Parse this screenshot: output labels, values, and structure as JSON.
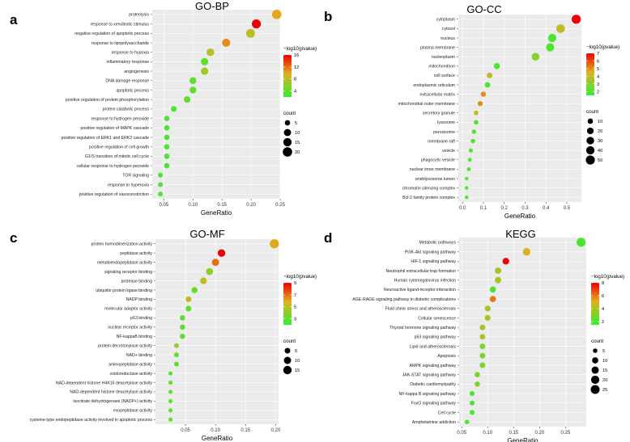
{
  "colors": {
    "low": "#33ee33",
    "mid": "#e0b020",
    "high": "#ee0000",
    "panel_bg": "#ebebeb"
  },
  "legend_titles": {
    "color": "−log10(pvalue)",
    "size": "count"
  },
  "chart_data": [
    {
      "type": "scatter",
      "letter": "a",
      "title": "GO-BP",
      "xlabel": "GeneRatio",
      "xlim": [
        0.03,
        0.25
      ],
      "xticks": [
        0.05,
        0.1,
        0.15,
        0.2,
        0.25
      ],
      "xtick_labels": [
        "0.05",
        "0.10",
        "0.15",
        "0.20",
        "0.25"
      ],
      "color_range": [
        2,
        16
      ],
      "color_ticks": [
        4,
        8,
        12,
        16
      ],
      "size_range": [
        2,
        20
      ],
      "size_ticks": [
        5,
        10,
        15,
        20
      ],
      "terms": [
        {
          "label": "proteolysis",
          "x": 0.244,
          "p": 10,
          "count": 20
        },
        {
          "label": "response to xenobiotic stimulus",
          "x": 0.209,
          "p": 16,
          "count": 18
        },
        {
          "label": "negative regulation of apoptotic process",
          "x": 0.199,
          "p": 8,
          "count": 17
        },
        {
          "label": "response to lipopolysaccharide",
          "x": 0.157,
          "p": 11,
          "count": 14
        },
        {
          "label": "response to hypoxia",
          "x": 0.13,
          "p": 8,
          "count": 12
        },
        {
          "label": "inflammatory response",
          "x": 0.12,
          "p": 4,
          "count": 11
        },
        {
          "label": "angiogenesis",
          "x": 0.12,
          "p": 7,
          "count": 11
        },
        {
          "label": "DNA damage response",
          "x": 0.1,
          "p": 4,
          "count": 9
        },
        {
          "label": "apoptotic process",
          "x": 0.1,
          "p": 4,
          "count": 9
        },
        {
          "label": "positive regulation of protein phosphorylation",
          "x": 0.09,
          "p": 4,
          "count": 8
        },
        {
          "label": "protein catabolic process",
          "x": 0.067,
          "p": 3,
          "count": 6
        },
        {
          "label": "response to hydrogen peroxide",
          "x": 0.055,
          "p": 3,
          "count": 5
        },
        {
          "label": "positive regulation of MAPK cascade",
          "x": 0.055,
          "p": 3,
          "count": 5
        },
        {
          "label": "positive regulation of ERK1 and ERK2 cascade",
          "x": 0.055,
          "p": 3,
          "count": 5
        },
        {
          "label": "positive regulation of cell growth",
          "x": 0.055,
          "p": 3,
          "count": 5
        },
        {
          "label": "G1/S transition of mitotic cell cycle",
          "x": 0.055,
          "p": 3,
          "count": 5
        },
        {
          "label": "cellular response to hydrogen peroxide",
          "x": 0.055,
          "p": 3,
          "count": 5
        },
        {
          "label": "TOR signaling",
          "x": 0.044,
          "p": 3,
          "count": 4
        },
        {
          "label": "response to hyperoxia",
          "x": 0.044,
          "p": 3,
          "count": 4
        },
        {
          "label": "positive regulation of vasoconstriction",
          "x": 0.044,
          "p": 3,
          "count": 4
        }
      ]
    },
    {
      "type": "scatter",
      "letter": "b",
      "title": "GO-CC",
      "xlabel": "GeneRatio",
      "xlim": [
        -0.02,
        0.57
      ],
      "xticks": [
        0.0,
        0.1,
        0.2,
        0.3,
        0.4,
        0.5
      ],
      "xtick_labels": [
        "0.0",
        "0.1",
        "0.2",
        "0.3",
        "0.4",
        "0.5"
      ],
      "color_range": [
        1.5,
        7
      ],
      "color_ticks": [
        2,
        3,
        4,
        5,
        6,
        7
      ],
      "size_range": [
        1,
        55
      ],
      "size_ticks": [
        10,
        20,
        30,
        40,
        50
      ],
      "terms": [
        {
          "label": "cytoplasm",
          "x": 0.545,
          "p": 7,
          "count": 50
        },
        {
          "label": "cytosol",
          "x": 0.47,
          "p": 4,
          "count": 43
        },
        {
          "label": "nucleus",
          "x": 0.43,
          "p": 2,
          "count": 39
        },
        {
          "label": "plasma membrane",
          "x": 0.42,
          "p": 2,
          "count": 38
        },
        {
          "label": "nucleoplasm",
          "x": 0.35,
          "p": 3,
          "count": 32
        },
        {
          "label": "mitochondrion",
          "x": 0.165,
          "p": 2,
          "count": 15
        },
        {
          "label": "cell surface",
          "x": 0.13,
          "p": 4,
          "count": 12
        },
        {
          "label": "endoplasmic reticulum",
          "x": 0.12,
          "p": 2,
          "count": 11
        },
        {
          "label": "extracellular matrix",
          "x": 0.1,
          "p": 5,
          "count": 9
        },
        {
          "label": "mitochondrial outer membrane",
          "x": 0.085,
          "p": 5,
          "count": 8
        },
        {
          "label": "secretory granule",
          "x": 0.065,
          "p": 4,
          "count": 6
        },
        {
          "label": "lysosome",
          "x": 0.065,
          "p": 2,
          "count": 6
        },
        {
          "label": "peroxisome",
          "x": 0.055,
          "p": 2,
          "count": 5
        },
        {
          "label": "membrane raft",
          "x": 0.05,
          "p": 2,
          "count": 5
        },
        {
          "label": "vesicle",
          "x": 0.04,
          "p": 2,
          "count": 4
        },
        {
          "label": "phagocytic vesicle",
          "x": 0.035,
          "p": 2,
          "count": 3
        },
        {
          "label": "nuclear inner membrane",
          "x": 0.03,
          "p": 2,
          "count": 3
        },
        {
          "label": "endolysosome lumen",
          "x": 0.02,
          "p": 2,
          "count": 2
        },
        {
          "label": "chromatin silencing complex",
          "x": 0.02,
          "p": 2,
          "count": 2
        },
        {
          "label": "Bcl-2 family protein complex",
          "x": 0.02,
          "p": 2,
          "count": 2
        }
      ]
    },
    {
      "type": "scatter",
      "letter": "c",
      "title": "GO-MF",
      "xlabel": "GeneRatio",
      "xlim": [
        0.0,
        0.205
      ],
      "xticks": [
        0.05,
        0.1,
        0.15,
        0.2
      ],
      "xtick_labels": [
        "0.05",
        "0.10",
        "0.15",
        "0.20"
      ],
      "color_range": [
        2,
        9
      ],
      "color_ticks": [
        3,
        5,
        7,
        9
      ],
      "size_range": [
        1,
        20
      ],
      "size_ticks": [
        5,
        10,
        15
      ],
      "terms": [
        {
          "label": "protein homodimerization activity",
          "x": 0.198,
          "p": 6,
          "count": 18
        },
        {
          "label": "peptidase activity",
          "x": 0.11,
          "p": 9,
          "count": 11
        },
        {
          "label": "metalloendopeptidase activity",
          "x": 0.1,
          "p": 7,
          "count": 10
        },
        {
          "label": "signaling receptor binding",
          "x": 0.09,
          "p": 4,
          "count": 9
        },
        {
          "label": "protease binding",
          "x": 0.08,
          "p": 5,
          "count": 8
        },
        {
          "label": "ubiquitin protein ligase binding",
          "x": 0.065,
          "p": 3,
          "count": 6
        },
        {
          "label": "NADP binding",
          "x": 0.055,
          "p": 5,
          "count": 5
        },
        {
          "label": "molecular adaptor activity",
          "x": 0.055,
          "p": 3,
          "count": 5
        },
        {
          "label": "p53 binding",
          "x": 0.045,
          "p": 3,
          "count": 4
        },
        {
          "label": "nuclear receptor activity",
          "x": 0.045,
          "p": 3,
          "count": 4
        },
        {
          "label": "NF-kappaB binding",
          "x": 0.045,
          "p": 3,
          "count": 4
        },
        {
          "label": "protein decrotonylase activity",
          "x": 0.035,
          "p": 4,
          "count": 3
        },
        {
          "label": "NAD+ binding",
          "x": 0.035,
          "p": 3,
          "count": 3
        },
        {
          "label": "aminopeptidase activity",
          "x": 0.035,
          "p": 3,
          "count": 3
        },
        {
          "label": "oxidoreductase activity",
          "x": 0.025,
          "p": 3,
          "count": 2
        },
        {
          "label": "NAD-dependent histone H4K16 deacetylase activity",
          "x": 0.025,
          "p": 3,
          "count": 2
        },
        {
          "label": "NAD-dependent histone deacetylase activity",
          "x": 0.025,
          "p": 3,
          "count": 2
        },
        {
          "label": "isocitrate dehydrogenase (NADP+) activity",
          "x": 0.025,
          "p": 3,
          "count": 2
        },
        {
          "label": "exopeptidase activity",
          "x": 0.025,
          "p": 3,
          "count": 2
        },
        {
          "label": "cysteine-type endopeptidase activity involved in apoptotic process",
          "x": 0.025,
          "p": 3,
          "count": 2
        }
      ]
    },
    {
      "type": "scatter",
      "letter": "d",
      "title": "KEGG",
      "xlabel": "GeneRatio",
      "xlim": [
        0.045,
        0.29
      ],
      "xticks": [
        0.05,
        0.1,
        0.15,
        0.2,
        0.25
      ],
      "xtick_labels": [
        "0.05",
        "0.10",
        "0.15",
        "0.20",
        "0.25"
      ],
      "color_range": [
        1.5,
        8
      ],
      "color_ticks": [
        2,
        4,
        6,
        8
      ],
      "size_range": [
        3,
        28
      ],
      "size_ticks": [
        5,
        10,
        15,
        20,
        25
      ],
      "terms": [
        {
          "label": "Metabolic pathways",
          "x": 0.28,
          "p": 2,
          "count": 25
        },
        {
          "label": "PI3K-Akt signaling pathway",
          "x": 0.175,
          "p": 5,
          "count": 16
        },
        {
          "label": "HIF-1 signaling pathway",
          "x": 0.135,
          "p": 8,
          "count": 12
        },
        {
          "label": "Neutrophil extracellular trap formation",
          "x": 0.12,
          "p": 4,
          "count": 11
        },
        {
          "label": "Human cytomegalovirus infection",
          "x": 0.12,
          "p": 4,
          "count": 11
        },
        {
          "label": "Neuroactive ligand-receptor interaction",
          "x": 0.11,
          "p": 2,
          "count": 10
        },
        {
          "label": "AGE-RAGE signaling pathway in diabetic complications",
          "x": 0.11,
          "p": 6,
          "count": 10
        },
        {
          "label": "Fluid shear stress and atherosclerosis",
          "x": 0.1,
          "p": 4,
          "count": 9
        },
        {
          "label": "Cellular senescence",
          "x": 0.1,
          "p": 4,
          "count": 9
        },
        {
          "label": "Thyroid hormone signaling pathway",
          "x": 0.09,
          "p": 4,
          "count": 8
        },
        {
          "label": "p53 signaling pathway",
          "x": 0.09,
          "p": 4,
          "count": 8
        },
        {
          "label": "Lipid and atherosclerosis",
          "x": 0.09,
          "p": 3,
          "count": 8
        },
        {
          "label": "Apoptosis",
          "x": 0.09,
          "p": 3,
          "count": 8
        },
        {
          "label": "AMPK signaling pathway",
          "x": 0.09,
          "p": 3,
          "count": 8
        },
        {
          "label": "JAK-STAT signaling pathway",
          "x": 0.08,
          "p": 3,
          "count": 7
        },
        {
          "label": "Diabetic cardiomyopathy",
          "x": 0.08,
          "p": 3,
          "count": 7
        },
        {
          "label": "NF-kappa B signaling pathway",
          "x": 0.07,
          "p": 2,
          "count": 6
        },
        {
          "label": "FoxO signaling pathway",
          "x": 0.07,
          "p": 2,
          "count": 6
        },
        {
          "label": "Cell cycle",
          "x": 0.07,
          "p": 2,
          "count": 6
        },
        {
          "label": "Amphetamine addiction",
          "x": 0.06,
          "p": 2,
          "count": 5
        }
      ]
    }
  ]
}
